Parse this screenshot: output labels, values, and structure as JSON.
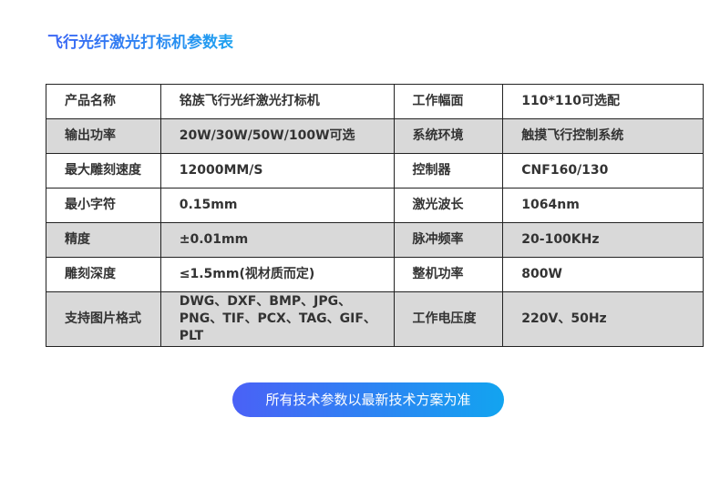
{
  "title": "飞行光纤激光打标机参数表",
  "rows": [
    {
      "k1": "产品名称",
      "v1": "铭族飞行光纤激光打标机",
      "k2": "工作幅面",
      "v2": "110*110可选配",
      "shaded": false
    },
    {
      "k1": "输出功率",
      "v1": "20W/30W/50W/100W可选",
      "k2": "系统环境",
      "v2": "触摸飞行控制系统",
      "shaded": true
    },
    {
      "k1": "最大雕刻速度",
      "v1": "12000MM/S",
      "k2": "控制器",
      "v2": "CNF160/130",
      "shaded": false
    },
    {
      "k1": "最小字符",
      "v1": "0.15mm",
      "k2": "激光波长",
      "v2": "1064nm",
      "shaded": false
    },
    {
      "k1": "精度",
      "v1": "±0.01mm",
      "k2": "脉冲频率",
      "v2": "20-100KHz",
      "shaded": true
    },
    {
      "k1": "雕刻深度",
      "v1": "≤1.5mm(视材质而定)",
      "k2": "整机功率",
      "v2": "800W",
      "shaded": false
    },
    {
      "k1": "支持图片格式",
      "v1": "DWG、DXF、BMP、JPG、PNG、TIF、PCX、TAG、GIF、PLT",
      "k2": "工作电压度",
      "v2": "220V、50Hz",
      "shaded": true
    }
  ],
  "button": "所有技术参数以最新技术方案为准",
  "colors": {
    "accent_start": "#4a61f6",
    "accent_end": "#12a4f0",
    "row_shade": "#d9d9d9"
  }
}
